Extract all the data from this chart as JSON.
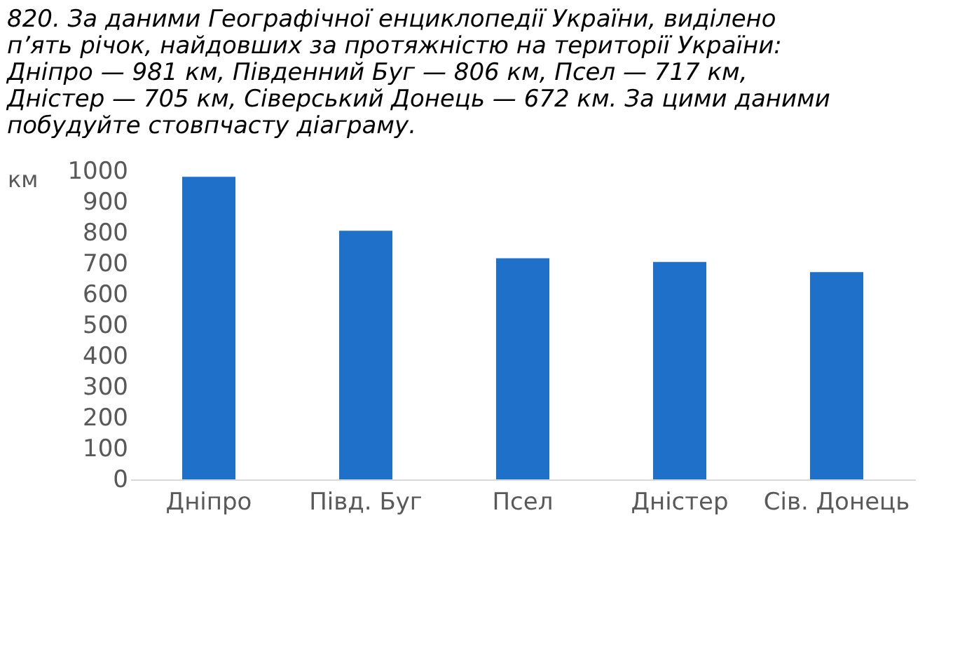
{
  "chart_data": {
    "type": "bar",
    "title": "820. За даними Географічної енциклопедії України, виділено п’ять річок, найдовших за протяжністю на території України: Дніпро — 981 км, Південний Буг — 806 км, Псел — 717 км, Дністер — 705 км, Сіверський Донець — 672 км. За цими даними побудуйте стовпчасту діаграму.",
    "ylabel": "км",
    "categories": [
      "Дніпро",
      "Півд. Буг",
      "Псел",
      "Дністер",
      "Сів. Донець"
    ],
    "values": [
      981,
      806,
      717,
      705,
      672
    ],
    "color": "#1f70c8",
    "ylim": [
      0,
      1000
    ],
    "yticks": [
      0,
      100,
      200,
      300,
      400,
      500,
      600,
      700,
      800,
      900,
      1000
    ],
    "grid": false
  }
}
